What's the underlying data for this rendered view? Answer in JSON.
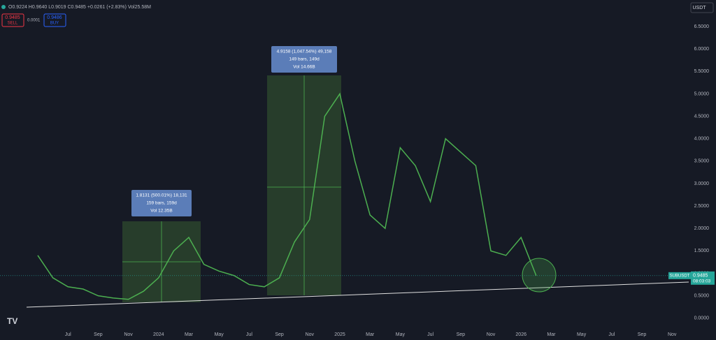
{
  "header": {
    "ohlc": "O0.9224 H0.9640 L0.9019 C0.9485 +0.0261 (+2.83%) Vol25.58M",
    "sell_price": "0.9485",
    "sell": "SELL",
    "spread": "0.0001",
    "buy_price": "0.9486",
    "buy": "BUY",
    "currency": "USDT"
  },
  "chart_data": {
    "type": "line",
    "symbol": "SUBUSDT",
    "countdown": "08:03:03",
    "color": "#4caf50",
    "categories": [
      null,
      null,
      "Jul",
      null,
      "Sep",
      null,
      "Nov",
      null,
      "2024",
      null,
      "Mar",
      null,
      "May",
      null,
      "Jul",
      null,
      "Sep",
      null,
      "Nov",
      null,
      "2025",
      null,
      "Mar",
      null,
      "May",
      null,
      "Jul",
      null,
      "Sep",
      null,
      "Nov",
      null,
      "2026",
      null,
      "Mar",
      null,
      "May",
      null,
      "Jul",
      null,
      "Sep",
      null,
      "Nov"
    ],
    "values": [
      1.4,
      0.9,
      0.7,
      0.65,
      0.5,
      0.45,
      0.42,
      0.6,
      0.9,
      1.5,
      1.8,
      1.2,
      1.05,
      0.95,
      0.75,
      0.7,
      0.9,
      1.7,
      2.2,
      4.5,
      5.0,
      3.5,
      2.3,
      2.0,
      3.8,
      3.4,
      2.6,
      4.0,
      3.7,
      3.4,
      1.5,
      1.4,
      1.8,
      0.95,
      null,
      null,
      null,
      null,
      null,
      null,
      null,
      null,
      null
    ],
    "last_price": 0.9485,
    "ylim": [
      -0.19,
      6.78
    ],
    "yticks": [
      {
        "value": 0,
        "label": "0.0000"
      },
      {
        "value": 0.5,
        "label": "0.5000"
      },
      {
        "value": 1,
        "label": "1.0000"
      },
      {
        "value": 1.5,
        "label": "1.5000"
      },
      {
        "value": 2,
        "label": "2.0000"
      },
      {
        "value": 2.5,
        "label": "2.5000"
      },
      {
        "value": 3,
        "label": "3.0000"
      },
      {
        "value": 3.5,
        "label": "3.5000"
      },
      {
        "value": 4,
        "label": "4.0000"
      },
      {
        "value": 4.5,
        "label": "4.5000"
      },
      {
        "value": 5,
        "label": "5.0000"
      },
      {
        "value": 5.5,
        "label": "5.5000"
      },
      {
        "value": 6,
        "label": "6.0000"
      },
      {
        "value": 6.5,
        "label": "6.5000"
      }
    ],
    "annotations": [
      [
        "1.8131 (500.01%) 18,131",
        "159 bars, 159d",
        "Vol 12.35B"
      ],
      [
        "4.9158 (1,047.54%) 49,158",
        "149 bars, 149d",
        "Vol 14.66B"
      ]
    ]
  }
}
